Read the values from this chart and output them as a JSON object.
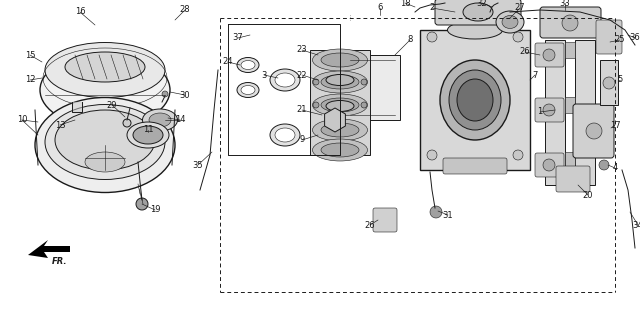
{
  "bg_color": "#ffffff",
  "line_color": "#1a1a1a",
  "gray_light": "#c8c8c8",
  "gray_mid": "#a0a0a0",
  "gray_dark": "#707070",
  "figsize": [
    6.4,
    3.2
  ],
  "dpi": 100
}
